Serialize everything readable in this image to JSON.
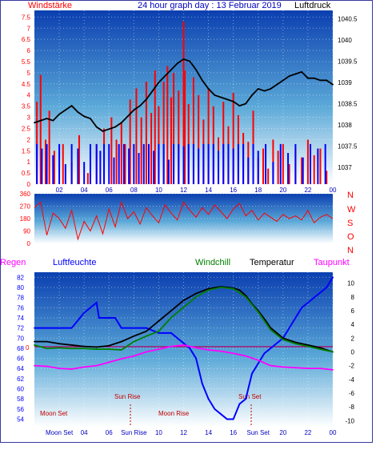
{
  "chart_data": [
    {
      "type": "line",
      "panel": "wind-pressure",
      "title": "24 hour graph day : 13 Februar 2019",
      "left_label": "Windstärke",
      "right_label": "Luftdruck",
      "x_ticks": [
        "02",
        "04",
        "06",
        "08",
        "10",
        "12",
        "14",
        "16",
        "18",
        "20",
        "22",
        "00"
      ],
      "left_ticks": [
        "0",
        "0.5",
        "1",
        "1.5",
        "2",
        "2.5",
        "3",
        "3.5",
        "4",
        "4.5",
        "5",
        "5.5",
        "6",
        "6.5",
        "7",
        "7.5"
      ],
      "right_ticks": [
        "1037",
        "1037.5",
        "1038",
        "1038.5",
        "1039",
        "1039.5",
        "1040",
        "1040.5"
      ],
      "left_ylim": [
        0,
        7.8
      ],
      "right_ylim": [
        1036.6,
        1040.7
      ],
      "series": [
        {
          "color": "#ff0000",
          "x": [
            0.2,
            0.5,
            0.9,
            1.2,
            1.6,
            2.3,
            3.0,
            3.6,
            4.3,
            5.0,
            5.6,
            6.2,
            6.6,
            7.0,
            7.3,
            7.7,
            8.2,
            8.6,
            9.0,
            9.4,
            9.7,
            10.0,
            10.4,
            10.7,
            11.0,
            11.2,
            11.6,
            12.0,
            12.1,
            12.4,
            12.8,
            13.2,
            13.6,
            14.0,
            14.4,
            14.8,
            15.2,
            15.6,
            16.0,
            16.4,
            16.8,
            17.2,
            17.6,
            18.0,
            18.4,
            18.8,
            19.2,
            19.6,
            20.0,
            20.5,
            21.0,
            21.5,
            22.0,
            22.5,
            23.0,
            23.5
          ],
          "values": [
            3.7,
            4.9,
            2.0,
            3.3,
            1.5,
            1.8,
            1.0,
            2.2,
            0.5,
            1.8,
            2.5,
            3.0,
            2.0,
            2.8,
            1.8,
            3.8,
            4.3,
            3.0,
            4.6,
            3.2,
            5.1,
            3.5,
            4.6,
            5.3,
            3.9,
            5.0,
            4.2,
            7.3,
            5.1,
            3.6,
            4.8,
            4.0,
            2.9,
            4.3,
            3.5,
            2.1,
            3.7,
            2.6,
            4.1,
            3.1,
            2.3,
            1.9,
            3.3,
            1.2,
            1.6,
            0.7,
            2.0,
            1.5,
            1.8,
            0.9,
            1.6,
            1.2,
            2.0,
            1.3,
            1.6,
            0.6
          ]
        },
        {
          "color": "#0000ff",
          "x": [
            0.2,
            0.6,
            1.0,
            1.5,
            2.0,
            2.5,
            3.0,
            3.5,
            4.0,
            4.5,
            5.0,
            5.3,
            5.6,
            6.0,
            6.4,
            6.8,
            7.2,
            7.6,
            8.0,
            8.4,
            8.8,
            9.2,
            9.6,
            10.0,
            10.4,
            10.8,
            11.2,
            11.6,
            12.0,
            12.4,
            12.8,
            13.2,
            13.6,
            14.0,
            14.4,
            14.8,
            15.2,
            15.6,
            16.0,
            16.4,
            16.8,
            17.2,
            17.6,
            18.0,
            18.6,
            19.2,
            19.8,
            20.4,
            21.0,
            21.6,
            22.2,
            22.8,
            23.4
          ],
          "values": [
            1.8,
            1.6,
            1.8,
            1.3,
            1.8,
            0.9,
            1.8,
            1.6,
            1.0,
            1.8,
            1.8,
            1.5,
            1.8,
            1.8,
            1.2,
            1.8,
            1.8,
            1.6,
            1.8,
            1.4,
            1.8,
            1.8,
            1.5,
            1.8,
            1.8,
            1.1,
            1.8,
            1.8,
            1.7,
            1.8,
            1.8,
            1.6,
            1.8,
            1.8,
            1.8,
            1.5,
            1.8,
            1.8,
            1.6,
            1.8,
            1.8,
            1.2,
            1.8,
            1.5,
            1.8,
            1.0,
            1.8,
            1.4,
            1.8,
            1.2,
            1.8,
            1.6,
            1.8
          ]
        },
        {
          "color": "#000000",
          "x": [
            0.0,
            0.5,
            1.0,
            1.5,
            2.0,
            2.5,
            3.0,
            3.5,
            4.0,
            4.5,
            5.0,
            5.5,
            6.0,
            6.5,
            7.0,
            7.5,
            8.0,
            8.5,
            9.0,
            9.5,
            10.0,
            10.5,
            11.0,
            11.5,
            12.0,
            12.5,
            13.0,
            13.5,
            14.0,
            14.5,
            15.0,
            15.5,
            16.0,
            16.5,
            17.0,
            17.5,
            18.0,
            18.5,
            19.0,
            19.5,
            20.0,
            20.5,
            21.0,
            21.5,
            22.0,
            22.5,
            23.0,
            23.5,
            24.0
          ],
          "values": [
            1038.05,
            1038.1,
            1038.15,
            1038.1,
            1038.25,
            1038.35,
            1038.45,
            1038.3,
            1038.2,
            1038.15,
            1037.95,
            1037.85,
            1037.9,
            1037.95,
            1038.05,
            1038.2,
            1038.35,
            1038.45,
            1038.6,
            1038.8,
            1039.0,
            1039.15,
            1039.3,
            1039.45,
            1039.55,
            1039.5,
            1039.3,
            1039.05,
            1038.85,
            1038.7,
            1038.65,
            1038.6,
            1038.55,
            1038.45,
            1038.5,
            1038.7,
            1038.85,
            1038.8,
            1038.85,
            1038.95,
            1039.05,
            1039.15,
            1039.2,
            1039.25,
            1039.1,
            1039.1,
            1039.05,
            1039.05,
            1038.95
          ]
        }
      ]
    },
    {
      "type": "line",
      "panel": "wind-direction",
      "left_ticks": [
        "0",
        "90",
        "180",
        "270",
        "360"
      ],
      "right_labels": [
        "N",
        "W",
        "S",
        "O",
        "N"
      ],
      "ylim": [
        0,
        360
      ],
      "series": [
        {
          "color": "#ff0000",
          "x": [
            0.0,
            0.5,
            1.0,
            1.5,
            2.0,
            2.5,
            3.0,
            3.5,
            4.0,
            4.5,
            5.0,
            5.5,
            6.0,
            6.5,
            7.0,
            7.5,
            8.0,
            8.5,
            9.0,
            9.5,
            10.0,
            10.5,
            11.0,
            11.5,
            12.0,
            12.5,
            13.0,
            13.5,
            14.0,
            14.5,
            15.0,
            15.5,
            16.0,
            16.5,
            17.0,
            17.5,
            18.0,
            18.5,
            19.0,
            19.5,
            20.0,
            20.5,
            21.0,
            21.5,
            22.0,
            22.5,
            23.0,
            23.5,
            24.0
          ],
          "values": [
            260,
            300,
            60,
            220,
            180,
            110,
            240,
            30,
            160,
            90,
            200,
            70,
            250,
            120,
            300,
            180,
            230,
            140,
            260,
            200,
            150,
            280,
            220,
            170,
            300,
            240,
            190,
            260,
            210,
            280,
            230,
            180,
            250,
            290,
            200,
            240,
            170,
            220,
            190,
            160,
            210,
            180,
            200,
            170,
            240,
            150,
            190,
            210,
            180
          ]
        }
      ]
    },
    {
      "type": "line",
      "panel": "temperature-humidity",
      "left_top_label": "Regen",
      "labels": [
        "Luftfeuchte",
        "Windchill",
        "Temperatur",
        "Taupunkt"
      ],
      "left_ticks": [
        "54",
        "56",
        "58",
        "60",
        "62",
        "64",
        "66",
        "68",
        "70",
        "72",
        "74",
        "76",
        "78",
        "80",
        "82"
      ],
      "right_ticks": [
        "-10",
        "-8",
        "-6",
        "-4",
        "-2",
        "0",
        "2",
        "4",
        "6",
        "8",
        "10"
      ],
      "left_ylim": [
        52.5,
        83
      ],
      "right_ylim": [
        -10.9,
        11.6
      ],
      "zero_label": "0",
      "annotations": [
        "Moon Set",
        "Sun Rise",
        "Moon Rise",
        "Sun Set"
      ],
      "x_ticks": [
        "Moon Set",
        "04",
        "06",
        "Sun Rise",
        "10",
        "12",
        "14",
        "16",
        "Sun Set",
        "20",
        "22",
        "00"
      ],
      "series": [
        {
          "name": "Luftfeuchte",
          "color": "#0000ff",
          "x": [
            0.0,
            1.0,
            2.0,
            3.0,
            4.0,
            4.5,
            5.0,
            5.2,
            5.5,
            6.5,
            7.0,
            8.0,
            9.0,
            10.0,
            11.0,
            12.0,
            12.5,
            13.0,
            13.5,
            14.0,
            14.5,
            15.0,
            15.5,
            16.0,
            16.5,
            17.0,
            17.5,
            18.0,
            18.5,
            19.0,
            19.5,
            20.0,
            20.5,
            21.0,
            21.5,
            22.0,
            22.5,
            23.0,
            23.5,
            24.0
          ],
          "values": [
            72,
            72,
            72,
            72,
            75,
            76,
            77,
            74,
            74,
            74,
            72,
            72,
            72,
            71,
            71,
            69,
            68,
            66,
            61,
            58,
            56,
            55,
            54,
            54,
            57,
            58,
            63,
            65,
            67,
            68,
            69,
            70,
            72,
            74,
            76,
            77,
            78,
            79,
            80,
            82
          ]
        },
        {
          "name": "Temperatur",
          "color": "#000000",
          "x": [
            0.0,
            1.0,
            2.0,
            3.0,
            4.0,
            5.0,
            6.0,
            7.0,
            8.0,
            9.0,
            10.0,
            11.0,
            12.0,
            12.5,
            13.0,
            14.0,
            15.0,
            16.0,
            16.5,
            17.0,
            17.5,
            18.0,
            18.5,
            19.0,
            20.0,
            21.0,
            22.0,
            23.0,
            24.0
          ],
          "values": [
            1.5,
            1.5,
            1.2,
            1.0,
            0.8,
            0.7,
            0.9,
            1.5,
            2.3,
            3.0,
            4.5,
            6.0,
            7.5,
            8.0,
            8.5,
            9.2,
            9.5,
            9.3,
            9.0,
            8.2,
            7.0,
            6.0,
            4.8,
            3.5,
            2.0,
            1.4,
            1.0,
            0.6,
            0.0
          ]
        },
        {
          "name": "Windchill",
          "color": "#008000",
          "x": [
            0.0,
            1.0,
            2.0,
            3.0,
            4.0,
            5.0,
            6.0,
            7.0,
            8.0,
            9.0,
            10.0,
            11.0,
            12.0,
            13.0,
            14.0,
            15.0,
            16.0,
            17.0,
            18.0,
            19.0,
            20.0,
            21.0,
            22.0,
            23.0,
            24.0
          ],
          "values": [
            1.0,
            0.5,
            0.6,
            0.5,
            0.5,
            0.4,
            0.4,
            0.3,
            1.5,
            2.3,
            3.0,
            5.0,
            6.5,
            8.0,
            9.0,
            9.4,
            9.2,
            8.0,
            5.8,
            3.2,
            1.8,
            1.2,
            0.8,
            0.4,
            0.0
          ]
        },
        {
          "name": "Taupunkt",
          "color": "#ff00ff",
          "x": [
            0.0,
            1.0,
            2.0,
            3.0,
            4.0,
            5.0,
            6.0,
            7.0,
            8.0,
            9.0,
            10.0,
            11.0,
            12.0,
            13.0,
            14.0,
            15.0,
            16.0,
            17.0,
            18.0,
            19.0,
            20.0,
            21.0,
            22.0,
            23.0,
            24.0
          ],
          "values": [
            -2.0,
            -2.1,
            -2.4,
            -2.5,
            -2.2,
            -2.0,
            -1.5,
            -1.0,
            -0.6,
            0.0,
            0.4,
            0.8,
            1.0,
            0.6,
            0.3,
            0.1,
            -0.2,
            -0.6,
            -1.2,
            -2.0,
            -2.2,
            -2.3,
            -2.4,
            -2.4,
            -2.6
          ]
        }
      ]
    }
  ]
}
